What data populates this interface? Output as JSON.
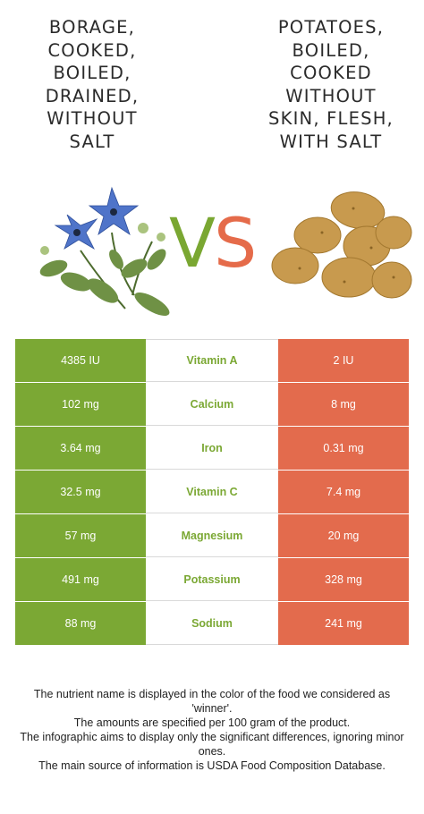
{
  "left_food": {
    "title": "Borage,\ncooked,\nboiled,\ndrained,\nwithout\nsalt",
    "color": "#7ba834"
  },
  "right_food": {
    "title": "Potatoes,\nboiled,\ncooked\nwithout\nskin, flesh,\nwith salt",
    "color": "#e36b4d"
  },
  "vs": {
    "v": "V",
    "s": "S"
  },
  "rows": [
    {
      "nutrient": "Vitamin A",
      "left": "4385 IU",
      "right": "2 IU"
    },
    {
      "nutrient": "Calcium",
      "left": "102 mg",
      "right": "8 mg"
    },
    {
      "nutrient": "Iron",
      "left": "3.64 mg",
      "right": "0.31 mg"
    },
    {
      "nutrient": "Vitamin C",
      "left": "32.5 mg",
      "right": "7.4 mg"
    },
    {
      "nutrient": "Magnesium",
      "left": "57 mg",
      "right": "20 mg"
    },
    {
      "nutrient": "Potassium",
      "left": "491 mg",
      "right": "328 mg"
    },
    {
      "nutrient": "Sodium",
      "left": "88 mg",
      "right": "241 mg"
    }
  ],
  "footnote": [
    "The nutrient name is displayed in the color of the food we considered as 'winner'.",
    "The amounts are specified per 100 gram of the product.",
    "The infographic aims to display only the significant differences, ignoring minor ones.",
    "The main source of information is USDA Food Composition Database."
  ],
  "images": {
    "left": "borage-flower-image",
    "right": "potatoes-image"
  }
}
